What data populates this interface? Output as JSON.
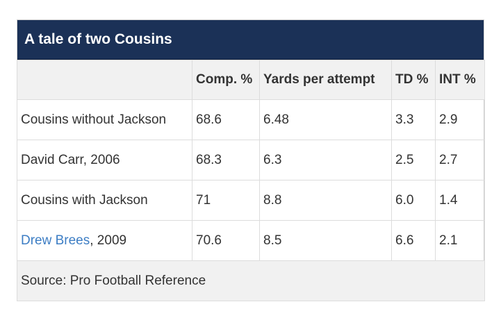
{
  "title": "A tale of two Cousins",
  "columns": [
    "",
    "Comp. %",
    "Yards per attempt",
    "TD %",
    "INT %"
  ],
  "rows": [
    {
      "label": "Cousins without Jackson",
      "comp": "68.6",
      "ypa": "6.48",
      "td": "3.3",
      "int": "2.9"
    },
    {
      "label": "David Carr, 2006",
      "comp": "68.3",
      "ypa": "6.3",
      "td": "2.5",
      "int": "2.7"
    },
    {
      "label": "Cousins with Jackson",
      "comp": "71",
      "ypa": "8.8",
      "td": "6.0",
      "int": "1.4"
    },
    {
      "label_link": "Drew Brees",
      "label_suffix": ", 2009",
      "comp": "70.6",
      "ypa": "8.5",
      "td": "6.6",
      "int": "2.1"
    }
  ],
  "source": "Source: Pro Football Reference",
  "colors": {
    "title_bg": "#1b3157",
    "link": "#3c7dc4"
  }
}
